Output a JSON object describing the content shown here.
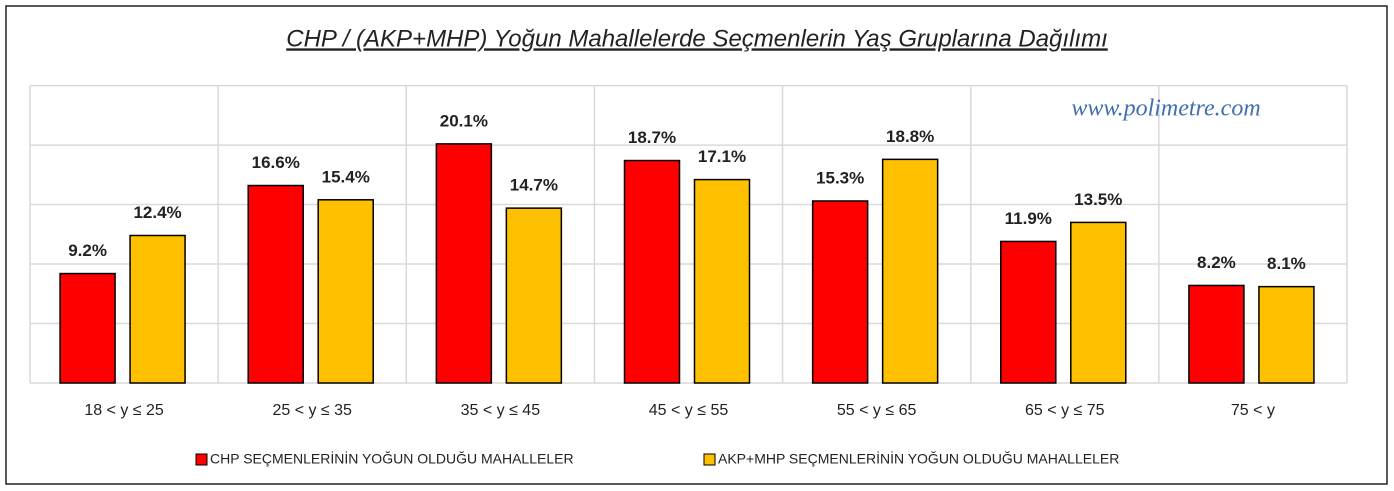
{
  "chart_data": {
    "type": "bar",
    "title": "CHP / (AKP+MHP) Yoğun Mahallelerde Seçmenlerin Yaş Gruplarına Dağılımı",
    "annotation": "www.polimetre.com",
    "categories": [
      "18 < y ≤ 25",
      "25 < y ≤ 35",
      "35 < y ≤ 45",
      "45 < y ≤ 55",
      "55 < y ≤ 65",
      "65 < y ≤ 75",
      "75 < y"
    ],
    "series": [
      {
        "name": "CHP SEÇMENLERİNİN YOĞUN OLDUĞU MAHALLELER",
        "color": "#ff0000",
        "values": [
          9.2,
          16.6,
          20.1,
          18.7,
          15.3,
          11.9,
          8.2
        ],
        "value_labels": [
          "9.2%",
          "16.6%",
          "20.1%",
          "18.7%",
          "15.3%",
          "11.9%",
          "8.2%"
        ]
      },
      {
        "name": "AKP+MHP SEÇMENLERİNİN YOĞUN OLDUĞU MAHALLELER",
        "color": "#ffc000",
        "values": [
          12.4,
          15.4,
          14.7,
          17.1,
          18.8,
          13.5,
          8.1
        ],
        "value_labels": [
          "12.4%",
          "15.4%",
          "14.7%",
          "17.1%",
          "18.8%",
          "13.5%",
          "8.1%"
        ]
      }
    ],
    "ylim": [
      0,
      25
    ],
    "yticks": [
      0,
      5,
      10,
      15,
      20,
      25
    ],
    "grid": true,
    "legend": "bottom"
  }
}
